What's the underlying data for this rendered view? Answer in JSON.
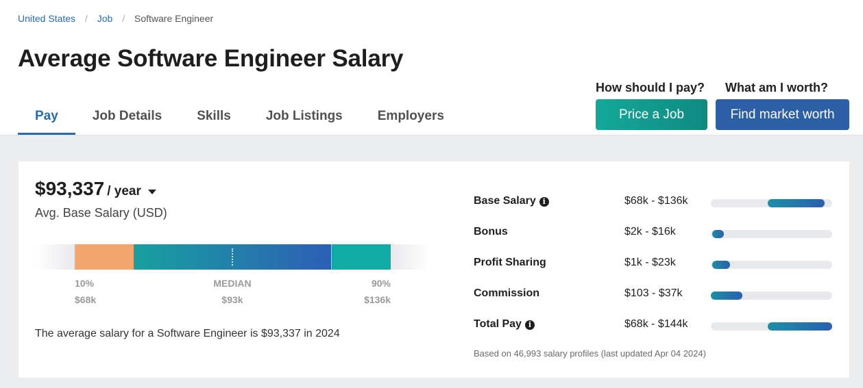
{
  "breadcrumb": {
    "items": [
      "United States",
      "Job",
      "Software Engineer"
    ],
    "separator": "/"
  },
  "page_title": "Average Software Engineer Salary",
  "tabs": [
    {
      "label": "Pay",
      "active": true
    },
    {
      "label": "Job Details",
      "active": false
    },
    {
      "label": "Skills",
      "active": false
    },
    {
      "label": "Job Listings",
      "active": false
    },
    {
      "label": "Employers",
      "active": false
    }
  ],
  "cta": {
    "pay_question": "How should I pay?",
    "price_job_label": "Price a Job",
    "worth_question": "What am I worth?",
    "market_worth_label": "Find market worth"
  },
  "salary": {
    "amount": "$93,337",
    "period": "/ year",
    "subtitle": "Avg. Base Salary (USD)",
    "percentiles": [
      {
        "label": "10%",
        "value": "$68k"
      },
      {
        "label": "MEDIAN",
        "value": "$93k"
      },
      {
        "label": "90%",
        "value": "$136k"
      }
    ],
    "summary": "The average salary for a Software Engineer is $93,337 in 2024"
  },
  "breakdown": {
    "rows": [
      {
        "label": "Base Salary",
        "info": true,
        "range": "$68k - $136k",
        "fill_start": 0.47,
        "fill_end": 0.94
      },
      {
        "label": "Bonus",
        "info": false,
        "range": "$2k - $16k",
        "fill_start": 0.01,
        "fill_end": 0.11
      },
      {
        "label": "Profit Sharing",
        "info": false,
        "range": "$1k - $23k",
        "fill_start": 0.01,
        "fill_end": 0.16
      },
      {
        "label": "Commission",
        "info": false,
        "range": "$103 - $37k",
        "fill_start": 0.0,
        "fill_end": 0.26
      },
      {
        "label": "Total Pay",
        "info": true,
        "range": "$68k - $144k",
        "fill_start": 0.47,
        "fill_end": 1.0
      }
    ],
    "footnote": "Based on 46,993 salary profiles (last updated Apr 04 2024)"
  },
  "colors": {
    "accent_blue": "#2a6ab0",
    "teal": "#13a99a",
    "orange": "#f5a66c",
    "button_blue": "#2c5fa5"
  }
}
